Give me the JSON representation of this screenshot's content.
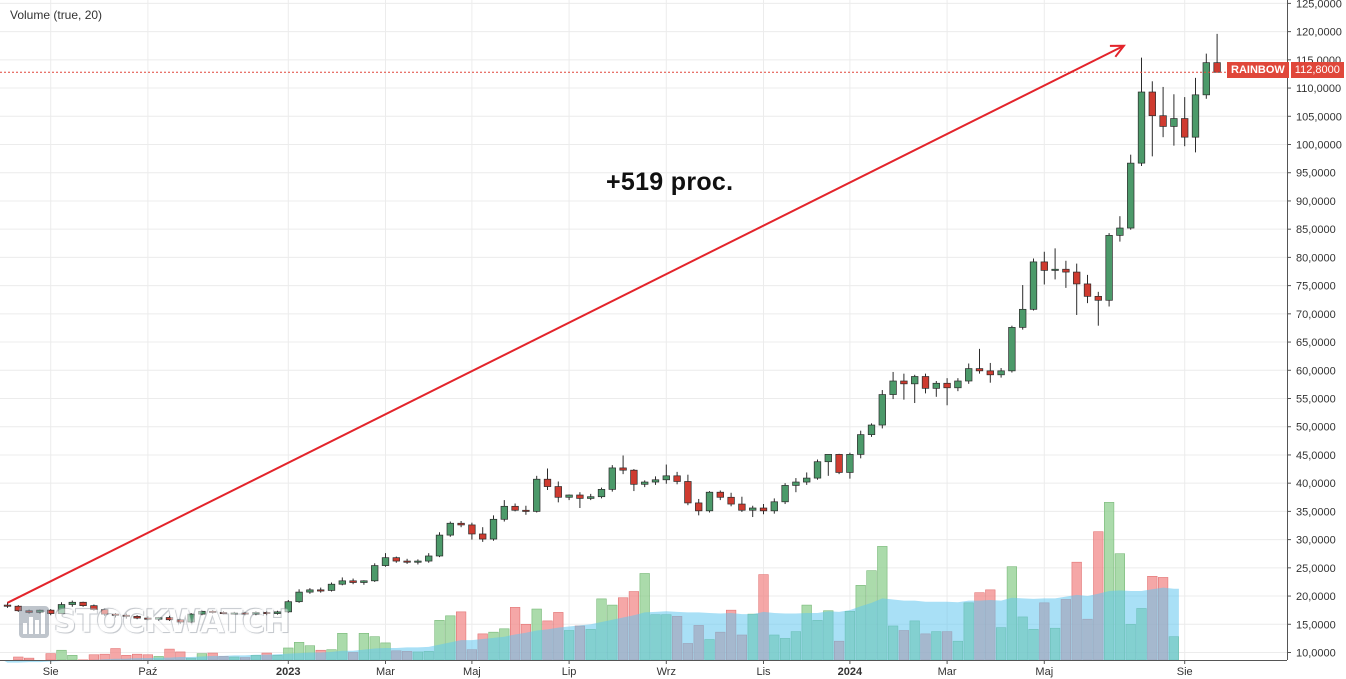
{
  "indicator_label": "Volume (true, 20)",
  "annotation": "+519 proc.",
  "watermark": "STOCKWATCH",
  "price_badge": {
    "name": "RAINBOW",
    "price": "112,8000"
  },
  "colors": {
    "up": "#4c9a6a",
    "down": "#cf3b30",
    "vol_up": "#8fcf8f",
    "vol_down": "#f28a8a",
    "vol_ma": "#62c6ee",
    "arrow": "#e3242b",
    "price_line": "#e0473a",
    "grid": "#ececec"
  },
  "chart_data": {
    "type": "candlestick",
    "title": "",
    "y_axis_side": "right",
    "ylim": [
      9000,
      125000
    ],
    "y_ticks": [
      "125,0000",
      "120,0000",
      "115,0000",
      "110,0000",
      "105,0000",
      "100,0000",
      "95,0000",
      "90,0000",
      "85,0000",
      "80,0000",
      "75,0000",
      "70,0000",
      "65,0000",
      "60,0000",
      "55,0000",
      "50,0000",
      "45,0000",
      "40,0000",
      "35,0000",
      "30,0000",
      "25,0000",
      "20,0000",
      "15,0000",
      "10,0000"
    ],
    "y_tick_values": [
      125,
      120,
      115,
      110,
      105,
      100,
      95,
      90,
      85,
      80,
      75,
      70,
      65,
      60,
      55,
      50,
      45,
      40,
      35,
      30,
      25,
      20,
      15,
      10
    ],
    "x_ticks": [
      {
        "label": "Sie",
        "week": 4,
        "bold": false
      },
      {
        "label": "Paź",
        "week": 13,
        "bold": false
      },
      {
        "label": "2023",
        "week": 26,
        "bold": true
      },
      {
        "label": "Mar",
        "week": 35,
        "bold": false
      },
      {
        "label": "Maj",
        "week": 43,
        "bold": false
      },
      {
        "label": "Lip",
        "week": 52,
        "bold": false
      },
      {
        "label": "Wrz",
        "week": 61,
        "bold": false
      },
      {
        "label": "Lis",
        "week": 70,
        "bold": false
      },
      {
        "label": "2024",
        "week": 78,
        "bold": true
      },
      {
        "label": "Mar",
        "week": 87,
        "bold": false
      },
      {
        "label": "Maj",
        "week": 96,
        "bold": false
      },
      {
        "label": "Sie",
        "week": 109,
        "bold": false
      }
    ],
    "last_price": 112.8,
    "arrow": {
      "from_week": 0,
      "from_value": 18.8,
      "to_week": 103,
      "to_value": 117.5
    },
    "candles": [
      [
        18.4,
        18.9,
        17.9,
        18.2
      ],
      [
        18.2,
        18.4,
        17.2,
        17.4
      ],
      [
        17.4,
        17.6,
        16.9,
        17.1
      ],
      [
        17.1,
        17.6,
        16.9,
        17.5
      ],
      [
        17.5,
        17.7,
        16.6,
        16.9
      ],
      [
        16.9,
        18.9,
        16.8,
        18.5
      ],
      [
        18.5,
        19.2,
        18.1,
        18.9
      ],
      [
        18.9,
        19.0,
        18.1,
        18.3
      ],
      [
        18.3,
        18.5,
        17.4,
        17.6
      ],
      [
        17.6,
        17.8,
        16.5,
        16.8
      ],
      [
        16.8,
        17.0,
        16.2,
        16.6
      ],
      [
        16.6,
        16.9,
        16.0,
        16.4
      ],
      [
        16.4,
        16.6,
        15.9,
        16.1
      ],
      [
        16.1,
        16.4,
        15.7,
        15.9
      ],
      [
        15.9,
        16.3,
        15.6,
        16.2
      ],
      [
        16.2,
        16.5,
        15.6,
        15.8
      ],
      [
        15.8,
        16.0,
        15.1,
        15.4
      ],
      [
        15.4,
        17.0,
        15.2,
        16.8
      ],
      [
        16.8,
        17.4,
        16.6,
        17.3
      ],
      [
        17.3,
        17.5,
        16.9,
        17.1
      ],
      [
        17.1,
        17.3,
        16.8,
        16.9
      ],
      [
        16.9,
        17.2,
        16.7,
        17.0
      ],
      [
        17.0,
        17.2,
        16.6,
        16.8
      ],
      [
        16.8,
        17.3,
        16.6,
        17.1
      ],
      [
        17.1,
        17.3,
        16.6,
        16.9
      ],
      [
        16.9,
        17.4,
        16.7,
        17.2
      ],
      [
        17.2,
        19.3,
        17.0,
        19.0
      ],
      [
        19.0,
        21.2,
        18.8,
        20.7
      ],
      [
        20.7,
        21.4,
        20.4,
        21.1
      ],
      [
        21.1,
        21.5,
        20.6,
        21.0
      ],
      [
        21.0,
        22.4,
        20.8,
        22.1
      ],
      [
        22.1,
        23.3,
        21.9,
        22.7
      ],
      [
        22.7,
        23.1,
        22.1,
        22.4
      ],
      [
        22.4,
        22.8,
        22.0,
        22.7
      ],
      [
        22.7,
        25.8,
        22.5,
        25.4
      ],
      [
        25.4,
        27.6,
        25.2,
        26.8
      ],
      [
        26.8,
        27.0,
        25.9,
        26.2
      ],
      [
        26.2,
        26.6,
        25.7,
        26.0
      ],
      [
        26.0,
        26.5,
        25.6,
        26.2
      ],
      [
        26.2,
        27.6,
        25.9,
        27.1
      ],
      [
        27.1,
        31.3,
        26.9,
        30.8
      ],
      [
        30.8,
        33.2,
        30.5,
        32.9
      ],
      [
        32.9,
        33.3,
        32.2,
        32.6
      ],
      [
        32.6,
        33.0,
        30.0,
        31.0
      ],
      [
        31.0,
        32.2,
        29.6,
        30.1
      ],
      [
        30.1,
        34.3,
        29.8,
        33.6
      ],
      [
        33.6,
        37.0,
        33.2,
        35.9
      ],
      [
        35.9,
        36.4,
        35.0,
        35.2
      ],
      [
        35.2,
        36.0,
        34.4,
        35.0
      ],
      [
        35.0,
        41.3,
        34.8,
        40.7
      ],
      [
        40.7,
        42.6,
        38.8,
        39.4
      ],
      [
        39.4,
        40.3,
        36.6,
        37.5
      ],
      [
        37.5,
        38.0,
        37.0,
        37.9
      ],
      [
        37.9,
        38.4,
        35.6,
        37.3
      ],
      [
        37.3,
        38.1,
        37.0,
        37.6
      ],
      [
        37.6,
        39.2,
        37.3,
        38.9
      ],
      [
        38.9,
        43.2,
        38.5,
        42.7
      ],
      [
        42.7,
        44.9,
        41.6,
        42.3
      ],
      [
        42.3,
        42.5,
        38.6,
        39.8
      ],
      [
        39.8,
        40.5,
        39.3,
        40.2
      ],
      [
        40.2,
        41.2,
        39.7,
        40.6
      ],
      [
        40.6,
        43.3,
        39.9,
        41.3
      ],
      [
        41.3,
        42.0,
        39.8,
        40.3
      ],
      [
        40.3,
        41.5,
        36.1,
        36.5
      ],
      [
        36.5,
        37.2,
        34.3,
        35.1
      ],
      [
        35.1,
        38.6,
        34.8,
        38.4
      ],
      [
        38.4,
        38.7,
        37.0,
        37.5
      ],
      [
        37.5,
        38.3,
        35.9,
        36.3
      ],
      [
        36.3,
        37.6,
        34.9,
        35.2
      ],
      [
        35.2,
        36.0,
        34.0,
        35.6
      ],
      [
        35.6,
        36.3,
        34.5,
        35.1
      ],
      [
        35.1,
        37.3,
        34.6,
        36.7
      ],
      [
        36.7,
        40.0,
        36.3,
        39.6
      ],
      [
        39.6,
        40.9,
        38.4,
        40.2
      ],
      [
        40.2,
        41.9,
        39.7,
        40.9
      ],
      [
        40.9,
        44.2,
        40.6,
        43.8
      ],
      [
        43.8,
        45.1,
        41.3,
        45.1
      ],
      [
        45.1,
        45.2,
        41.6,
        41.9
      ],
      [
        41.9,
        45.4,
        40.8,
        45.1
      ],
      [
        45.1,
        49.3,
        44.4,
        48.6
      ],
      [
        48.6,
        50.6,
        48.2,
        50.3
      ],
      [
        50.3,
        56.5,
        49.7,
        55.7
      ],
      [
        55.7,
        59.7,
        54.9,
        58.1
      ],
      [
        58.1,
        59.4,
        54.8,
        57.6
      ],
      [
        57.6,
        59.2,
        54.2,
        58.9
      ],
      [
        58.9,
        59.4,
        55.9,
        56.8
      ],
      [
        56.8,
        58.1,
        55.3,
        57.7
      ],
      [
        57.7,
        58.6,
        53.8,
        56.9
      ],
      [
        56.9,
        58.6,
        56.3,
        58.1
      ],
      [
        58.1,
        61.2,
        57.6,
        60.3
      ],
      [
        60.3,
        63.8,
        59.4,
        59.9
      ],
      [
        59.9,
        61.3,
        57.8,
        59.2
      ],
      [
        59.2,
        60.4,
        58.7,
        59.9
      ],
      [
        59.9,
        67.9,
        59.6,
        67.6
      ],
      [
        67.6,
        75.1,
        67.2,
        70.8
      ],
      [
        70.8,
        79.8,
        70.6,
        79.2
      ],
      [
        79.2,
        81.0,
        75.2,
        77.7
      ],
      [
        77.7,
        81.6,
        76.1,
        77.9
      ],
      [
        77.9,
        79.4,
        74.6,
        77.4
      ],
      [
        77.4,
        78.9,
        69.8,
        75.3
      ],
      [
        75.3,
        76.9,
        71.9,
        73.1
      ],
      [
        73.1,
        73.9,
        67.9,
        72.4
      ],
      [
        72.4,
        84.3,
        71.3,
        83.9
      ],
      [
        83.9,
        87.3,
        82.8,
        85.2
      ],
      [
        85.2,
        98.2,
        84.9,
        96.7
      ],
      [
        96.7,
        115.4,
        96.2,
        109.3
      ],
      [
        109.3,
        111.2,
        97.9,
        105.1
      ],
      [
        105.1,
        110.2,
        101.3,
        103.2
      ],
      [
        103.2,
        108.9,
        99.8,
        104.6
      ],
      [
        104.6,
        108.4,
        99.7,
        101.3
      ],
      [
        101.3,
        111.8,
        98.6,
        108.8
      ],
      [
        108.8,
        116.1,
        108.1,
        114.5
      ],
      [
        114.5,
        119.6,
        113.1,
        112.8
      ]
    ],
    "volume_k": [
      8.5,
      9.2,
      9.0,
      8.6,
      9.8,
      10.4,
      9.5,
      8.7,
      9.6,
      9.7,
      10.7,
      9.5,
      9.7,
      9.6,
      9.3,
      10.6,
      10.1,
      9.0,
      9.8,
      9.9,
      9.3,
      9.2,
      9.1,
      9.5,
      9.9,
      9.5,
      10.8,
      11.8,
      11.2,
      10.4,
      10.5,
      13.4,
      10.0,
      13.4,
      12.8,
      11.7,
      10.3,
      10.2,
      10.1,
      10.2,
      15.7,
      16.5,
      17.2,
      10.5,
      13.3,
      13.6,
      14.2,
      18.0,
      15.0,
      17.7,
      15.6,
      17.1,
      13.9,
      14.7,
      14.1,
      19.5,
      18.4,
      19.7,
      20.8,
      24.0,
      16.7,
      16.7,
      16.4,
      11.6,
      14.8,
      12.3,
      13.6,
      17.5,
      13.1,
      16.8,
      23.8,
      13.1,
      12.5,
      13.7,
      18.4,
      15.7,
      17.4,
      12.0,
      17.3,
      21.9,
      24.5,
      28.8,
      14.7,
      13.9,
      15.6,
      13.3,
      13.7,
      13.7,
      12.0,
      18.8,
      20.6,
      21.1,
      14.4,
      25.2,
      16.3,
      14.1,
      18.8,
      14.3,
      19.4,
      26.0,
      15.9,
      31.4,
      36.6,
      27.5,
      15.0,
      17.8,
      23.5,
      23.3,
      12.8
    ],
    "volume_ma_k": [
      8.2,
      8.2,
      8.3,
      8.3,
      8.4,
      8.5,
      8.5,
      8.6,
      8.7,
      8.8,
      8.9,
      8.9,
      9.0,
      9.0,
      9.1,
      9.1,
      9.2,
      9.2,
      9.3,
      9.4,
      9.4,
      9.5,
      9.5,
      9.6,
      9.6,
      9.7,
      9.8,
      9.9,
      10.0,
      10.0,
      10.1,
      10.3,
      10.3,
      10.5,
      10.7,
      10.8,
      10.8,
      10.9,
      10.9,
      11.0,
      11.4,
      11.8,
      12.2,
      12.2,
      12.4,
      12.6,
      12.8,
      13.2,
      13.5,
      13.9,
      14.1,
      14.4,
      14.6,
      14.8,
      15.0,
      15.4,
      15.8,
      16.2,
      16.6,
      17.1,
      17.2,
      17.3,
      17.2,
      17.1,
      17.1,
      17.0,
      16.9,
      17.0,
      16.8,
      16.8,
      17.2,
      17.0,
      16.9,
      16.9,
      17.0,
      17.0,
      17.3,
      17.2,
      17.5,
      18.2,
      18.8,
      19.6,
      19.4,
      19.2,
      19.2,
      19.0,
      19.0,
      19.0,
      18.9,
      19.2,
      19.2,
      19.3,
      19.2,
      19.7,
      19.6,
      19.5,
      19.6,
      19.6,
      19.9,
      20.2,
      20.0,
      20.4,
      20.9,
      21.0,
      20.9,
      20.9,
      21.2,
      21.5,
      21.3
    ]
  }
}
